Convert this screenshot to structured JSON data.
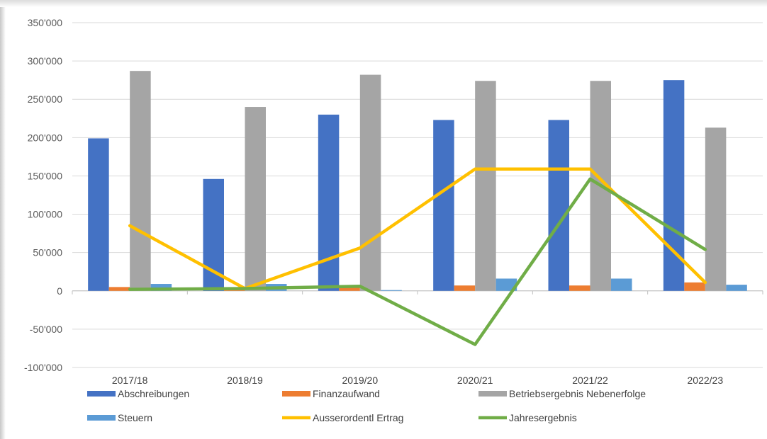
{
  "chart_data": {
    "type": "bar",
    "categories": [
      "2017/18",
      "2018/19",
      "2019/20",
      "2020/21",
      "2021/22",
      "2022/23"
    ],
    "ylim": [
      -100000,
      350000
    ],
    "yticks": [
      350000,
      300000,
      250000,
      200000,
      150000,
      100000,
      50000,
      0,
      -50000,
      -100000
    ],
    "ytick_labels": [
      "350'000",
      "300'000",
      "250'000",
      "200'000",
      "150'000",
      "100'000",
      "50'000",
      "0",
      "-50'000",
      "-100'000"
    ],
    "grid": true,
    "legend_position": "bottom",
    "series": [
      {
        "name": "Abschreibungen",
        "kind": "bar",
        "color": "#4472c4",
        "values": [
          199000,
          146000,
          230000,
          223000,
          223000,
          275000
        ]
      },
      {
        "name": "Finanzaufwand",
        "kind": "bar",
        "color": "#ed7d31",
        "values": [
          5000,
          4000,
          4000,
          7000,
          7000,
          11000
        ]
      },
      {
        "name": "Betriebsergebnis Nebenerfolge",
        "kind": "bar",
        "color": "#a5a5a5",
        "values": [
          287000,
          240000,
          282000,
          274000,
          274000,
          213000
        ]
      },
      {
        "name": "Steuern",
        "kind": "bar",
        "color": "#5b9bd5",
        "values": [
          9000,
          9000,
          1000,
          16000,
          16000,
          8000
        ]
      },
      {
        "name": "Ausserordentl Ertrag",
        "kind": "line",
        "color": "#ffc000",
        "values": [
          85000,
          3000,
          56000,
          159000,
          159000,
          11000
        ]
      },
      {
        "name": "Jahresergebnis",
        "kind": "line",
        "color": "#70ad47",
        "values": [
          2000,
          3000,
          6000,
          -70000,
          146000,
          54000
        ]
      }
    ]
  }
}
